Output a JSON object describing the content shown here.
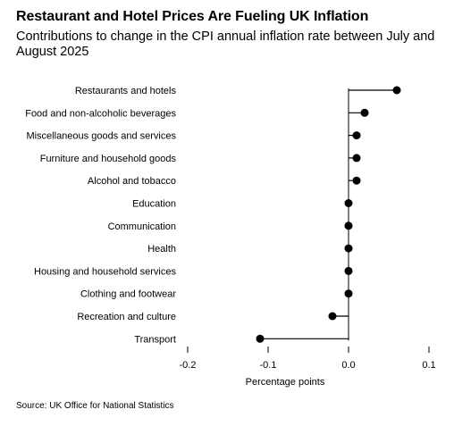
{
  "header": {
    "title": "Restaurant and Hotel Prices Are Fueling UK Inflation",
    "subtitle": "Contributions to change in the CPI annual inflation rate between July and August 2025"
  },
  "footer": {
    "source": "Source: UK Office for National Statistics"
  },
  "colors": {
    "text": "#000000",
    "marker": "#000000",
    "axis": "#000000",
    "background": "#ffffff"
  },
  "chart_data": {
    "type": "scatter",
    "style": "dot-plot with stems from zero",
    "title": "Restaurant and Hotel Prices Are Fueling UK Inflation",
    "subtitle": "Contributions to change in the CPI annual inflation rate between July and August 2025",
    "xlabel": "Percentage points",
    "ylabel": "",
    "xlim": [
      -0.2,
      0.1
    ],
    "x_ticks": [
      -0.2,
      -0.1,
      0.0,
      0.1
    ],
    "x_tick_labels": [
      "-0.2",
      "-0.1",
      "0.0",
      "0.1"
    ],
    "grid": false,
    "legend": "none",
    "categories": [
      "Restaurants and hotels",
      "Food and non-alcoholic beverages",
      "Miscellaneous goods and services",
      "Furniture and household goods",
      "Alcohol and tobacco",
      "Education",
      "Communication",
      "Health",
      "Housing and household services",
      "Clothing and footwear",
      "Recreation and culture",
      "Transport"
    ],
    "values": [
      0.06,
      0.02,
      0.01,
      0.01,
      0.01,
      0.0,
      0.0,
      0.0,
      0.0,
      0.0,
      -0.02,
      -0.11
    ]
  }
}
